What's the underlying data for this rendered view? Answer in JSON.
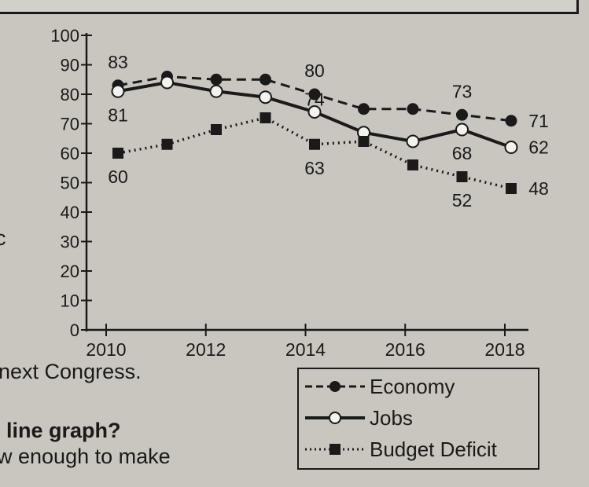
{
  "page_text": {
    "fragment_left": "c",
    "fragment_1": "next Congress.",
    "fragment_2": "line graph?",
    "fragment_3": "w enough to make"
  },
  "chart_data": {
    "type": "line",
    "x": [
      2010,
      2011,
      2012,
      2013,
      2014,
      2015,
      2016,
      2017,
      2018
    ],
    "x_ticks": [
      "2010",
      "2012",
      "2014",
      "2016",
      "2018"
    ],
    "y_ticks": [
      "0",
      "10",
      "20",
      "30",
      "40",
      "50",
      "60",
      "70",
      "80",
      "90",
      "100"
    ],
    "ylim": [
      0,
      100
    ],
    "xlim": [
      2010,
      2018
    ],
    "grid": false,
    "legend_placement": "bottom-right",
    "series": [
      {
        "name": "Economy",
        "style": "dashed",
        "marker": "filled-circle",
        "values": [
          83,
          86,
          85,
          85,
          80,
          75,
          75,
          73,
          71
        ],
        "labels": {
          "0": "83",
          "4": "80",
          "7": "73",
          "8": "71"
        }
      },
      {
        "name": "Jobs",
        "style": "solid",
        "marker": "open-circle",
        "values": [
          81,
          84,
          81,
          79,
          74,
          67,
          64,
          68,
          62
        ],
        "labels": {
          "0": "81",
          "4": "74",
          "7": "68",
          "8": "62"
        }
      },
      {
        "name": "Budget Deficit",
        "style": "dotted",
        "marker": "filled-square",
        "values": [
          60,
          63,
          68,
          72,
          63,
          64,
          56,
          52,
          48
        ],
        "labels": {
          "0": "60",
          "4": "63",
          "7": "52",
          "8": "48"
        }
      }
    ],
    "colors": {
      "ink": "#1a1a1a",
      "paper": "#c8c6bf"
    }
  }
}
